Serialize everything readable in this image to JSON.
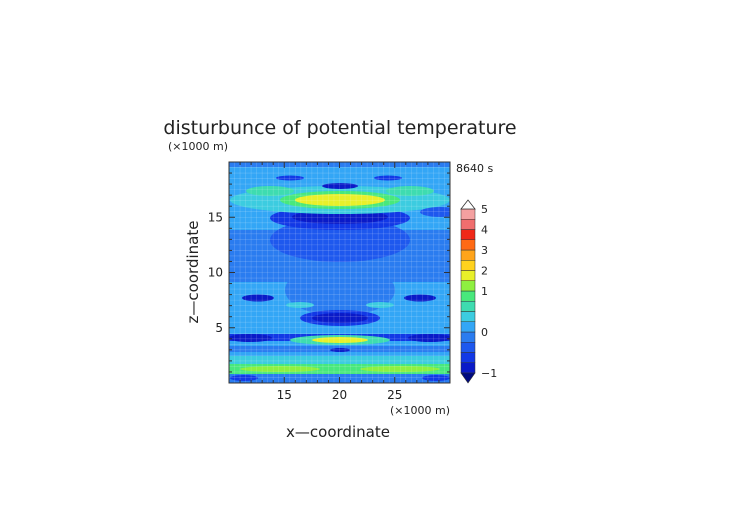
{
  "chart_data": {
    "type": "heatmap",
    "title": "disturbunce of potential temperature",
    "unit_label_y": "(×1000 m)",
    "unit_label_x": "(×1000 m)",
    "time_label": "8640 s",
    "xlabel": "x—coordinate",
    "ylabel": "z—coordinate",
    "xlim": [
      10,
      30
    ],
    "ylim": [
      0,
      20
    ],
    "x_ticks": [
      15,
      20,
      25
    ],
    "y_ticks": [
      5,
      10,
      15
    ],
    "colorbar": {
      "ticks": [
        -1,
        0,
        1,
        2,
        3,
        4,
        5
      ],
      "levels": [
        -1,
        -0.75,
        -0.5,
        -0.25,
        0,
        0.25,
        0.5,
        0.75,
        1,
        1.5,
        2,
        2.5,
        3,
        3.5,
        4,
        4.5,
        5
      ],
      "colors": [
        "#0a1ac8",
        "#1238e6",
        "#1e58ee",
        "#2a7cf0",
        "#33a6f6",
        "#3ccce0",
        "#3edcb0",
        "#48e87c",
        "#8ef040",
        "#e8f02a",
        "#ffd21e",
        "#ffa41a",
        "#ff6a14",
        "#f02818",
        "#f06e6e",
        "#f4a0a0"
      ],
      "under_color": "#000a80",
      "over_color": "#ffffff"
    }
  }
}
